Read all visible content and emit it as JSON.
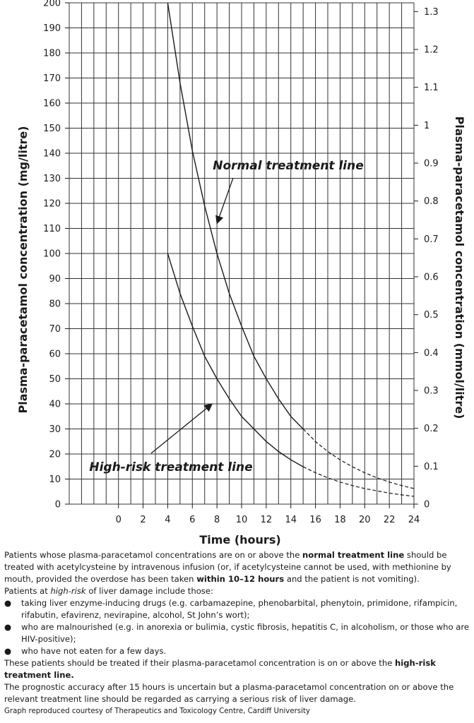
{
  "chart_data": {
    "type": "line",
    "xlabel": "Time (hours)",
    "ylabel": "Plasma-paracetamol concentration (mg/litre)",
    "y2label": "Plasma-paracetamol concentration (mmol/litre)",
    "xlim": [
      -4,
      24
    ],
    "ylim": [
      0,
      200
    ],
    "x_ticks": [
      "0",
      "2",
      "4",
      "6",
      "8",
      "10",
      "12",
      "14",
      "16",
      "18",
      "20",
      "22",
      "24"
    ],
    "y_ticks": [
      "0",
      "10",
      "20",
      "30",
      "40",
      "50",
      "60",
      "70",
      "80",
      "90",
      "100",
      "110",
      "120",
      "130",
      "140",
      "150",
      "160",
      "170",
      "180",
      "190",
      "200"
    ],
    "y2_ticks": [
      {
        "mmol": 0,
        "label": "0"
      },
      {
        "mmol": 0.1,
        "label": "0.1"
      },
      {
        "mmol": 0.2,
        "label": "0.2"
      },
      {
        "mmol": 0.3,
        "label": "0.3"
      },
      {
        "mmol": 0.4,
        "label": "0.4"
      },
      {
        "mmol": 0.5,
        "label": "0.5"
      },
      {
        "mmol": 0.6,
        "label": "0.6"
      },
      {
        "mmol": 0.7,
        "label": "0.7"
      },
      {
        "mmol": 0.8,
        "label": "0.8"
      },
      {
        "mmol": 0.9,
        "label": "0.9"
      },
      {
        "mmol": 1.0,
        "label": "1"
      },
      {
        "mmol": 1.1,
        "label": "1.1"
      },
      {
        "mmol": 1.2,
        "label": "1.2"
      },
      {
        "mmol": 1.3,
        "label": "1.3"
      }
    ],
    "mgl_per_mmol": 151.16,
    "grid": true,
    "series": [
      {
        "name": "Normal treatment line",
        "x": [
          4,
          5,
          6,
          7,
          8,
          9,
          10,
          11,
          12,
          13,
          14,
          15,
          16,
          17,
          18,
          19,
          20,
          21,
          22,
          23,
          24
        ],
        "y": [
          200,
          168,
          141,
          119,
          100,
          84,
          71,
          59,
          50,
          42,
          35,
          30,
          25,
          21,
          17.7,
          14.9,
          12.5,
          10.5,
          8.8,
          7.4,
          6.2
        ],
        "solid_until": 15
      },
      {
        "name": "High-risk treatment line",
        "x": [
          4,
          5,
          6,
          7,
          8,
          9,
          10,
          11,
          12,
          13,
          14,
          15,
          16,
          17,
          18,
          19,
          20,
          21,
          22,
          23,
          24
        ],
        "y": [
          100,
          84,
          71,
          59,
          50,
          42,
          35,
          30,
          25,
          21,
          17.7,
          14.9,
          12.5,
          10.5,
          8.8,
          7.4,
          6.2,
          5.3,
          4.4,
          3.7,
          3.1
        ],
        "solid_until": 15
      }
    ],
    "annotations": [
      {
        "text": "Normal treatment line",
        "series": 0,
        "arrow_to": [
          8,
          112
        ]
      },
      {
        "text": "High-risk treatment line",
        "series": 1,
        "arrow_to": [
          7.6,
          40
        ]
      }
    ]
  },
  "notes": {
    "intro": [
      {
        "t": "Patients whose plasma-paracetamol concentrations are on or above the ",
        "b": false
      },
      {
        "t": "normal treatment line",
        "b": true
      },
      {
        "t": " should be treated with acetylcysteine by intravenous infusion (or, if acetylcysteine cannot be used, with methionine by mouth, provided the overdose has been taken ",
        "b": false
      },
      {
        "t": "within 10–12 hours",
        "b": true
      },
      {
        "t": " and the patient is not vomiting).",
        "b": false
      }
    ],
    "high_risk_intro": [
      {
        "t": "Patients at ",
        "b": false,
        "i": false
      },
      {
        "t": "high-risk",
        "b": false,
        "i": true
      },
      {
        "t": " of liver damage include those:",
        "b": false,
        "i": false
      }
    ],
    "bullets": [
      "taking liver enzyme-inducing drugs (e.g. carbamazepine, phenobarbital, phenytoin, primidone, rifampicin, rifabutin, efavirenz, nevirapine, alcohol, St John’s wort);",
      "who are malnourished (e.g. in anorexia or bulimia, cystic fibrosis, hepatitis C, in alcoholism, or those who are HIV-positive);",
      "who have not eaten for a few days."
    ],
    "bullet_char": "●",
    "treat_note": [
      {
        "t": "These patients should be treated if their plasma-paracetamol concentration is on or above the ",
        "b": false
      },
      {
        "t": "high-risk treatment line.",
        "b": true
      }
    ],
    "prognosis": "The prognostic accuracy after 15 hours is uncertain but a plasma-paracetamol concentration on or above the relevant treatment line should be regarded as carrying a serious risk of liver damage.",
    "credit": "Graph reproduced courtesy of Therapeutics and Toxicology Centre, Cardiff University"
  }
}
